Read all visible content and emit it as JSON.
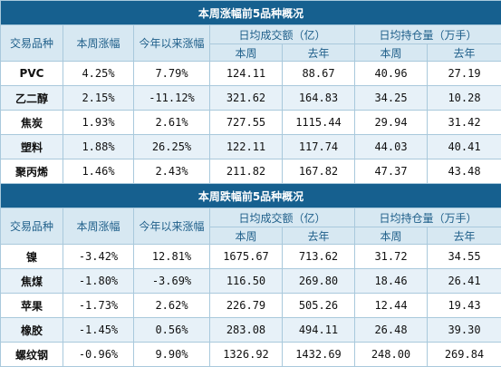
{
  "sections": [
    {
      "title": "本周涨幅前5品种概况",
      "headers": {
        "variety": "交易品种",
        "weekly_change": "本周涨幅",
        "ytd_change": "今年以来涨幅",
        "avg_volume": "日均成交额（亿）",
        "avg_oi": "日均持仓量（万手）",
        "this_week": "本周",
        "last_year": "去年"
      },
      "rows": [
        {
          "name": "PVC",
          "weekly": "4.25%",
          "ytd": "7.79%",
          "vol_week": "124.11",
          "vol_last": "88.67",
          "oi_week": "40.96",
          "oi_last": "27.19"
        },
        {
          "name": "乙二醇",
          "weekly": "2.15%",
          "ytd": "-11.12%",
          "vol_week": "321.62",
          "vol_last": "164.83",
          "oi_week": "34.25",
          "oi_last": "10.28"
        },
        {
          "name": "焦炭",
          "weekly": "1.93%",
          "ytd": "2.61%",
          "vol_week": "727.55",
          "vol_last": "1115.44",
          "oi_week": "29.94",
          "oi_last": "31.42"
        },
        {
          "name": "塑料",
          "weekly": "1.88%",
          "ytd": "26.25%",
          "vol_week": "122.11",
          "vol_last": "117.74",
          "oi_week": "44.03",
          "oi_last": "40.41"
        },
        {
          "name": "聚丙烯",
          "weekly": "1.46%",
          "ytd": "2.43%",
          "vol_week": "211.82",
          "vol_last": "167.82",
          "oi_week": "47.37",
          "oi_last": "43.48"
        }
      ]
    },
    {
      "title": "本周跌幅前5品种概况",
      "headers": {
        "variety": "交易品种",
        "weekly_change": "本周涨幅",
        "ytd_change": "今年以来涨幅",
        "avg_volume": "日均成交额（亿）",
        "avg_oi": "日均持仓量（万手）",
        "this_week": "本周",
        "last_year": "去年"
      },
      "rows": [
        {
          "name": "镍",
          "weekly": "-3.42%",
          "ytd": "12.81%",
          "vol_week": "1675.67",
          "vol_last": "713.62",
          "oi_week": "31.72",
          "oi_last": "34.55"
        },
        {
          "name": "焦煤",
          "weekly": "-1.80%",
          "ytd": "-3.69%",
          "vol_week": "116.50",
          "vol_last": "269.80",
          "oi_week": "18.46",
          "oi_last": "26.41"
        },
        {
          "name": "苹果",
          "weekly": "-1.73%",
          "ytd": "2.62%",
          "vol_week": "226.79",
          "vol_last": "505.26",
          "oi_week": "12.44",
          "oi_last": "19.43"
        },
        {
          "name": "橡胶",
          "weekly": "-1.45%",
          "ytd": "0.56%",
          "vol_week": "283.08",
          "vol_last": "494.11",
          "oi_week": "26.48",
          "oi_last": "39.30"
        },
        {
          "name": "螺纹钢",
          "weekly": "-0.96%",
          "ytd": "9.90%",
          "vol_week": "1326.92",
          "vol_last": "1432.69",
          "oi_week": "248.00",
          "oi_last": "269.84"
        }
      ]
    }
  ]
}
